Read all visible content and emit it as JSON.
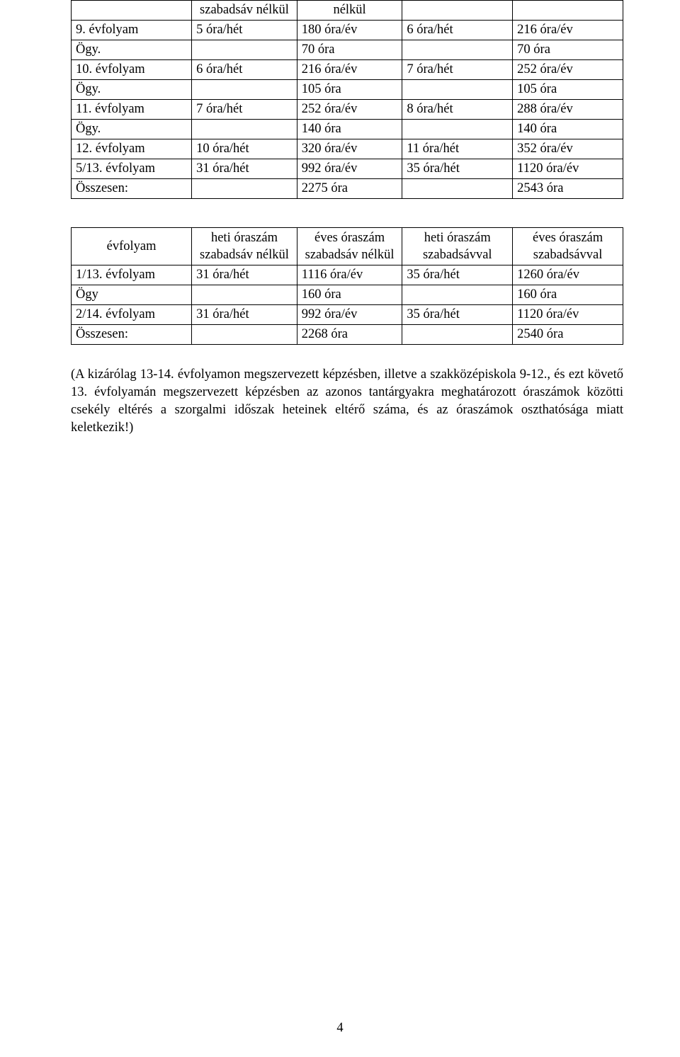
{
  "t1": {
    "r0": {
      "c2": "szabadsáv nélkül",
      "c3": "nélkül"
    },
    "r1": {
      "c1": "9. évfolyam",
      "c2": "5 óra/hét",
      "c3": "180 óra/év",
      "c4": "6 óra/hét",
      "c5": "216 óra/év"
    },
    "r2": {
      "c1": "Ögy.",
      "c3": "70 óra",
      "c5": "70 óra"
    },
    "r3": {
      "c1": "10. évfolyam",
      "c2": "6 óra/hét",
      "c3": "216 óra/év",
      "c4": "7 óra/hét",
      "c5": "252 óra/év"
    },
    "r4": {
      "c1": "Ögy.",
      "c3": "105 óra",
      "c5": "105 óra"
    },
    "r5": {
      "c1": "11. évfolyam",
      "c2": "7 óra/hét",
      "c3": "252 óra/év",
      "c4": "8 óra/hét",
      "c5": "288 óra/év"
    },
    "r6": {
      "c1": "Ögy.",
      "c3": "140 óra",
      "c5": "140 óra"
    },
    "r7": {
      "c1": "12. évfolyam",
      "c2": "10 óra/hét",
      "c3": "320 óra/év",
      "c4": "11 óra/hét",
      "c5": "352 óra/év"
    },
    "r8": {
      "c1": "5/13. évfolyam",
      "c2": "31 óra/hét",
      "c3": "992 óra/év",
      "c4": "35 óra/hét",
      "c5": "1120 óra/év"
    },
    "r9": {
      "c1": "Összesen:",
      "c3": "2275 óra",
      "c5": "2543 óra"
    }
  },
  "t2": {
    "h": {
      "c1": "évfolyam",
      "c2": "heti óraszám szabadsáv nélkül",
      "c3": "éves óraszám szabadsáv nélkül",
      "c4": "heti óraszám szabadsávval",
      "c5": "éves óraszám szabadsávval"
    },
    "r1": {
      "c1": "1/13. évfolyam",
      "c2": "31 óra/hét",
      "c3": "1116 óra/év",
      "c4": "35 óra/hét",
      "c5": "1260 óra/év"
    },
    "r2": {
      "c1": "Ögy",
      "c3": "160 óra",
      "c5": "160 óra"
    },
    "r3": {
      "c1": "2/14. évfolyam",
      "c2": "31 óra/hét",
      "c3": "992 óra/év",
      "c4": "35 óra/hét",
      "c5": "1120 óra/év"
    },
    "r4": {
      "c1": "Összesen:",
      "c3": "2268 óra",
      "c5": "2540 óra"
    }
  },
  "paragraph": "(A kizárólag 13-14. évfolyamon megszervezett képzésben, illetve a szakközépiskola 9-12., és ezt követő 13. évfolyamán megszervezett képzésben az azonos tantárgyakra meghatározott óraszámok közötti csekély eltérés a szorgalmi időszak heteinek eltérő száma, és az óraszámok oszthatósága miatt keletkezik!)",
  "page_number": "4"
}
